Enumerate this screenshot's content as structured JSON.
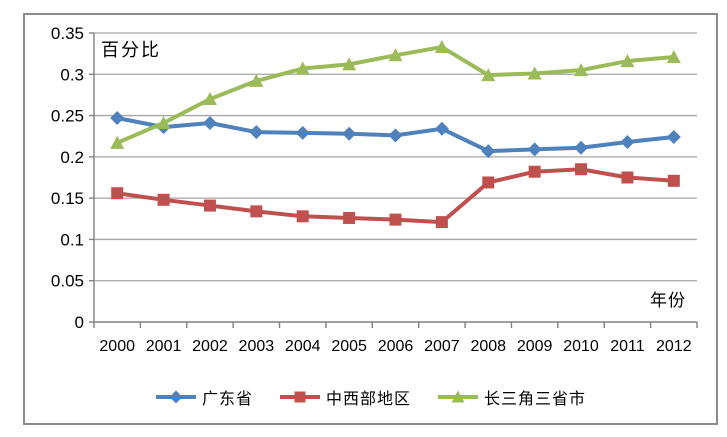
{
  "frame": {
    "background": "#ffffff",
    "border_color": "#8c8c8c"
  },
  "chart_data": {
    "type": "line",
    "title": "",
    "ylabel": "百分比",
    "xlabel": "年份",
    "categories": [
      "2000",
      "2001",
      "2002",
      "2003",
      "2004",
      "2005",
      "2006",
      "2007",
      "2008",
      "2009",
      "2010",
      "2011",
      "2012"
    ],
    "series": [
      {
        "name": "广东省",
        "color": "#4F81BD",
        "marker": "diamond",
        "values": [
          0.247,
          0.236,
          0.241,
          0.23,
          0.229,
          0.228,
          0.226,
          0.234,
          0.207,
          0.209,
          0.211,
          0.218,
          0.224
        ]
      },
      {
        "name": "中西部地区",
        "color": "#C0504D",
        "marker": "square",
        "values": [
          0.156,
          0.148,
          0.141,
          0.134,
          0.128,
          0.126,
          0.124,
          0.121,
          0.169,
          0.182,
          0.185,
          0.175,
          0.171
        ]
      },
      {
        "name": "长三角三省市",
        "color": "#9BBB59",
        "marker": "triangle",
        "values": [
          0.217,
          0.241,
          0.27,
          0.292,
          0.307,
          0.312,
          0.323,
          0.333,
          0.299,
          0.301,
          0.305,
          0.316,
          0.321
        ]
      }
    ],
    "ylim": [
      0,
      0.35
    ],
    "y_ticks": [
      0,
      0.05,
      0.1,
      0.15,
      0.2,
      0.25,
      0.3,
      0.35
    ],
    "y_tick_labels": [
      "0",
      "0.05",
      "0.1",
      "0.15",
      "0.2",
      "0.25",
      "0.3",
      "0.35"
    ],
    "grid": true,
    "legend_position": "bottom",
    "gridline_color": "#a6a6a6",
    "axis_color": "#808080",
    "text_color": "#000000"
  }
}
